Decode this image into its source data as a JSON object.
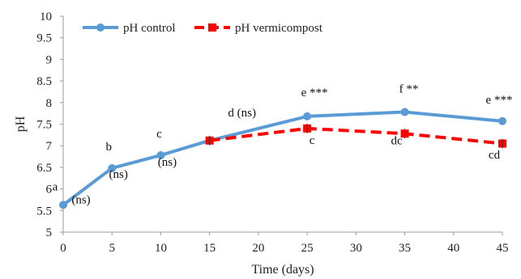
{
  "chart_data": {
    "type": "line",
    "xlabel": "Time (days)",
    "ylabel": "pH",
    "xlim": [
      0,
      45
    ],
    "ylim": [
      5,
      10
    ],
    "x_ticks": [
      "0",
      "5",
      "10",
      "15",
      "20",
      "25",
      "30",
      "35",
      "40",
      "45"
    ],
    "y_ticks": [
      "5",
      "5.5",
      "6",
      "6.5",
      "7",
      "7.5",
      "8",
      "8.5",
      "9",
      "9.5",
      "10"
    ],
    "legend_position": "top-left",
    "grid": false,
    "series": [
      {
        "name": "pH control",
        "color": "#5b9bd5",
        "style": "solid",
        "x": [
          0,
          5,
          10,
          15,
          25,
          35,
          45
        ],
        "y": [
          5.63,
          6.48,
          6.78,
          7.12,
          7.68,
          7.78,
          7.57
        ]
      },
      {
        "name": "pH vermicompost",
        "color": "#ff0000",
        "style": "dashed",
        "x": [
          15,
          25,
          35,
          45
        ],
        "y": [
          7.12,
          7.4,
          7.28,
          7.05
        ]
      }
    ],
    "annotations": [
      {
        "text": "a",
        "x": 0
      },
      {
        "text": "(ns)",
        "x": 0
      },
      {
        "text": "b",
        "x": 5
      },
      {
        "text": "(ns)",
        "x": 5
      },
      {
        "text": "c",
        "x": 10
      },
      {
        "text": "(ns)",
        "x": 10
      },
      {
        "text": "d (ns)",
        "x": 15
      },
      {
        "text": "e ***",
        "x": 25
      },
      {
        "text": "c",
        "x": 25
      },
      {
        "text": "f **",
        "x": 35
      },
      {
        "text": "dc",
        "x": 35
      },
      {
        "text": "e ***",
        "x": 45
      },
      {
        "text": "cd",
        "x": 45
      }
    ]
  }
}
